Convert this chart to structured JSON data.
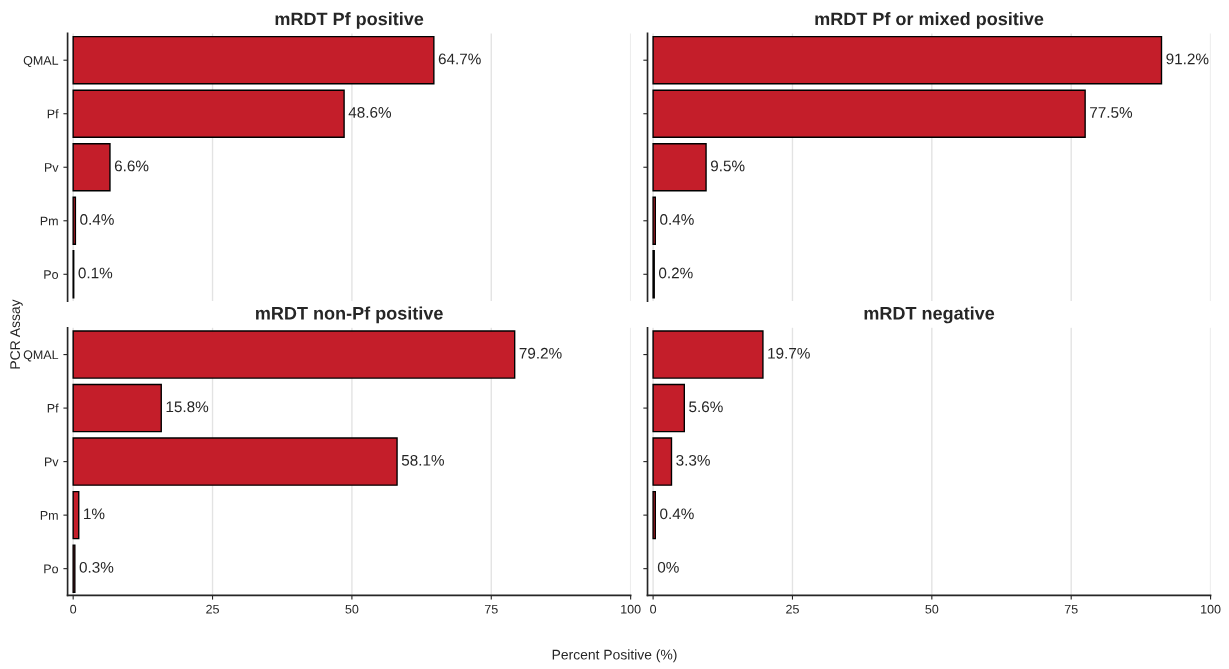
{
  "chart_data": [
    {
      "type": "bar",
      "orientation": "horizontal",
      "title": "mRDT Pf positive",
      "ylabel": "PCR Assay",
      "categories": [
        "QMAL",
        "Pf",
        "Pv",
        "Pm",
        "Po"
      ],
      "series": [
        {
          "color": "#c41e2a",
          "values": [
            64.7,
            48.6,
            6.6,
            0.4,
            0.1
          ],
          "value_labels": [
            "64.7%",
            "48.6%",
            "6.6%",
            "0.4%",
            "0.1%"
          ]
        }
      ],
      "xlim": [
        -1,
        100
      ],
      "xticks": [
        0,
        25,
        50,
        75,
        100
      ],
      "grid": "x",
      "tick_labels": "y"
    },
    {
      "type": "bar",
      "orientation": "horizontal",
      "title": "mRDT Pf or mixed positive",
      "categories": [
        null,
        null,
        null,
        null,
        null
      ],
      "series": [
        {
          "color": "#c41e2a",
          "values": [
            91.2,
            77.5,
            9.5,
            0.4,
            0.2
          ],
          "value_labels": [
            "91.2%",
            "77.5%",
            "9.5%",
            "0.4%",
            "0.2%"
          ]
        }
      ],
      "xlim": [
        -1,
        100
      ],
      "xticks": [
        0,
        25,
        50,
        75,
        100
      ],
      "grid": "x",
      "tick_labels": false
    },
    {
      "type": "bar",
      "orientation": "horizontal",
      "title": "mRDT non-Pf positive",
      "xlabel": "Percent Positive (%)",
      "categories": [
        "QMAL",
        "Pf",
        "Pv",
        "Pm",
        "Po"
      ],
      "series": [
        {
          "color": "#c41e2a",
          "values": [
            79.2,
            15.8,
            58.1,
            1,
            0.3
          ],
          "value_labels": [
            "79.2%",
            "15.8%",
            "58.1%",
            "1%",
            "0.3%"
          ]
        }
      ],
      "xlim": [
        -1,
        100
      ],
      "xticks": [
        0,
        25,
        50,
        75,
        100
      ],
      "grid": "x"
    },
    {
      "type": "bar",
      "orientation": "horizontal",
      "title": "mRDT negative",
      "categories": [
        null,
        null,
        null,
        null,
        null
      ],
      "series": [
        {
          "color": "#c41e2a",
          "values": [
            19.7,
            5.6,
            3.3,
            0.4,
            0
          ],
          "value_labels": [
            "19.7%",
            "5.6%",
            "3.3%",
            "0.4%",
            "0%"
          ]
        }
      ],
      "xlim": [
        -1,
        100
      ],
      "xticks": [
        0,
        25,
        50,
        75,
        100
      ],
      "grid": "x",
      "tick_labels": "x"
    }
  ]
}
